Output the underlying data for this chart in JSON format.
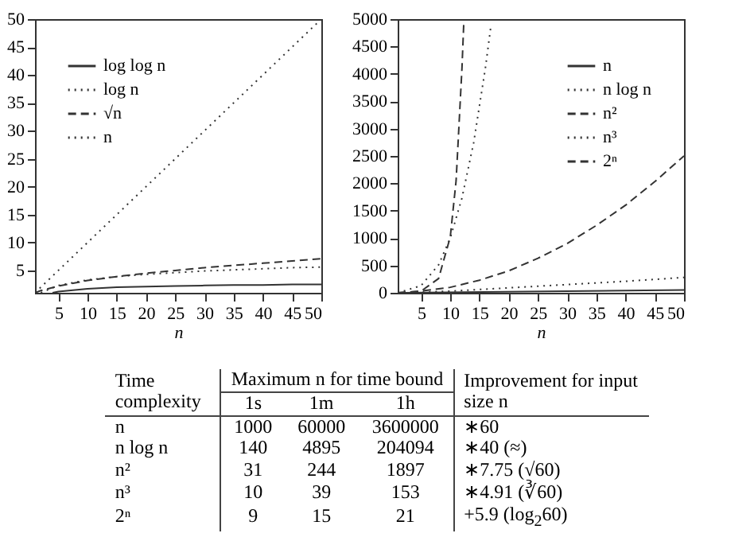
{
  "chart_data": [
    {
      "type": "line",
      "xlabel": "n",
      "xlim": [
        1,
        50
      ],
      "xticks": [
        5,
        10,
        15,
        20,
        25,
        30,
        35,
        40,
        45,
        50
      ],
      "ylim": [
        1,
        50
      ],
      "yticks": [
        5,
        10,
        15,
        20,
        25,
        30,
        35,
        40,
        45,
        50
      ],
      "legend": "top left",
      "series": [
        {
          "name": "log log n",
          "color": "#333333",
          "line_style": "solid",
          "x": [
            4,
            5,
            10,
            15,
            20,
            25,
            30,
            35,
            40,
            45,
            50
          ],
          "values": [
            1.0,
            1.2,
            1.7,
            2.0,
            2.1,
            2.2,
            2.3,
            2.4,
            2.4,
            2.5,
            2.5
          ]
        },
        {
          "name": "log n",
          "color": "#333333",
          "line_style": "dotted",
          "x": [
            2,
            5,
            10,
            15,
            20,
            25,
            30,
            35,
            40,
            45,
            50
          ],
          "values": [
            1.0,
            2.3,
            3.3,
            3.9,
            4.3,
            4.6,
            4.9,
            5.1,
            5.3,
            5.5,
            5.6
          ]
        },
        {
          "name": "√n",
          "color": "#333333",
          "line_style": "dashed",
          "x": [
            1,
            2,
            5,
            10,
            15,
            20,
            25,
            30,
            35,
            40,
            45,
            50
          ],
          "values": [
            1.0,
            1.4,
            2.2,
            3.2,
            3.9,
            4.5,
            5.0,
            5.5,
            5.9,
            6.3,
            6.7,
            7.1
          ]
        },
        {
          "name": "n",
          "color": "#333333",
          "line_style": "dotted",
          "x": [
            1,
            50
          ],
          "values": [
            1,
            50
          ]
        }
      ]
    },
    {
      "type": "line",
      "xlabel": "n",
      "xlim": [
        1,
        50
      ],
      "xticks": [
        5,
        10,
        15,
        20,
        25,
        30,
        35,
        40,
        45,
        50
      ],
      "ylim": [
        0,
        5000
      ],
      "yticks": [
        0,
        500,
        1000,
        1500,
        2000,
        2500,
        3000,
        3500,
        4000,
        4500,
        5000
      ],
      "legend": "top right",
      "series": [
        {
          "name": "n",
          "color": "#333333",
          "line_style": "solid",
          "x": [
            1,
            50
          ],
          "values": [
            0,
            50
          ]
        },
        {
          "name": "n log n",
          "color": "#333333",
          "line_style": "dotted",
          "x": [
            2,
            5,
            10,
            20,
            30,
            40,
            50
          ],
          "values": [
            0,
            10,
            30,
            90,
            150,
            210,
            280
          ]
        },
        {
          "name": "n²",
          "color": "#333333",
          "line_style": "dashed",
          "x": [
            1,
            5,
            10,
            15,
            20,
            25,
            30,
            35,
            40,
            45,
            50
          ],
          "values": [
            0,
            30,
            100,
            230,
            400,
            630,
            900,
            1230,
            1600,
            2030,
            2500
          ]
        },
        {
          "name": "n³",
          "color": "#333333",
          "line_style": "dotted",
          "x": [
            1,
            5,
            8,
            10,
            12,
            14,
            16,
            17
          ],
          "values": [
            0,
            130,
            510,
            1000,
            1730,
            2740,
            4100,
            4910
          ]
        },
        {
          "name": "2ⁿ",
          "color": "#333333",
          "line_style": "dashed",
          "x": [
            1,
            5,
            8,
            10,
            11,
            12,
            12.3
          ],
          "values": [
            0,
            30,
            260,
            1020,
            2050,
            4100,
            4900
          ]
        }
      ]
    },
    {
      "type": "other",
      "annotations": [
        "Time complexity",
        "Maximum n for time bound",
        "Improvement for input size n",
        "1s",
        "1m",
        "1h",
        "n",
        "1000",
        "60000",
        "3600000",
        "∗60",
        "n log n",
        "140",
        "4895",
        "204094",
        "∗40 (≈)",
        "n²",
        "31",
        "244",
        "1897",
        "∗7.75 (√60)",
        "n³",
        "10",
        "39",
        "153",
        "∗4.91 (∛60)",
        "2ⁿ",
        "9",
        "15",
        "21",
        "+5.9 (log$_{2}$60)"
      ]
    }
  ]
}
